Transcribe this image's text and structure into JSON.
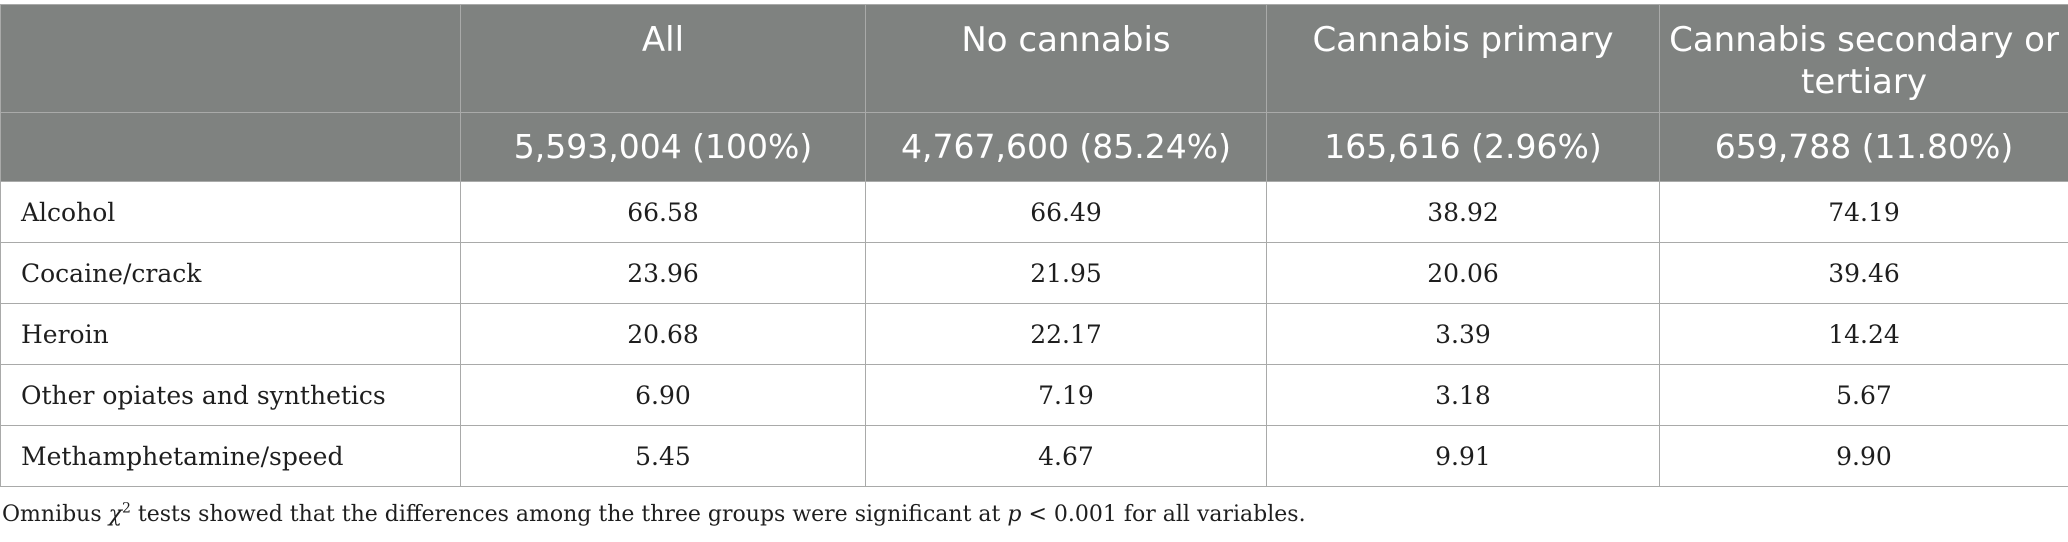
{
  "table": {
    "columns": [
      "",
      "All",
      "No cannabis",
      "Cannabis primary",
      "Cannabis secondary or tertiary"
    ],
    "counts": [
      "",
      "5,593,004 (100%)",
      "4,767,600 (85.24%)",
      "165,616 (2.96%)",
      "659,788 (11.80%)"
    ],
    "rows": [
      {
        "label": "Alcohol",
        "values": [
          "66.58",
          "66.49",
          "38.92",
          "74.19"
        ]
      },
      {
        "label": "Cocaine/crack",
        "values": [
          "23.96",
          "21.95",
          "20.06",
          "39.46"
        ]
      },
      {
        "label": "Heroin",
        "values": [
          "20.68",
          "22.17",
          "3.39",
          "14.24"
        ]
      },
      {
        "label": "Other opiates and synthetics",
        "values": [
          "6.90",
          "7.19",
          "3.18",
          "5.67"
        ]
      },
      {
        "label": "Methamphetamine/speed",
        "values": [
          "5.45",
          "4.67",
          "9.91",
          "9.90"
        ]
      }
    ]
  },
  "footnote": {
    "prefix": "Omnibus ",
    "chi": "χ",
    "sup": "2",
    "middle": " tests showed that the differences among the three groups were significant at ",
    "p": "p",
    "suffix": " < 0.001 for all variables."
  },
  "colors": {
    "header_bg": "#7f8280",
    "header_text": "#ffffff",
    "grid": "#a9aaa9"
  }
}
